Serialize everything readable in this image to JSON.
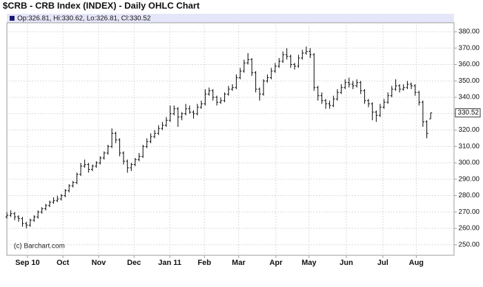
{
  "chart_data": {
    "type": "ohlc",
    "title": "$CRB - CRB Index (INDEX) - Daily OHLC Chart",
    "legend_text": "Op:326.81, Hi:330.62, Lo:326.81, Cl:330.52",
    "watermark": "(c) Barchart.com",
    "color": "#000000",
    "grid": true,
    "xlim": [
      0,
      115
    ],
    "xticks": [
      {
        "value": 5.3,
        "label": "Sep 10"
      },
      {
        "value": 14.4,
        "label": "Oct"
      },
      {
        "value": 23.6,
        "label": "Nov"
      },
      {
        "value": 32.7,
        "label": "Dec"
      },
      {
        "value": 41.9,
        "label": "Jan 11"
      },
      {
        "value": 50.8,
        "label": "Feb"
      },
      {
        "value": 59.6,
        "label": "Mar"
      },
      {
        "value": 69.2,
        "label": "Apr"
      },
      {
        "value": 77.7,
        "label": "May"
      },
      {
        "value": 87.3,
        "label": "Jun"
      },
      {
        "value": 96.7,
        "label": "Jul"
      },
      {
        "value": 105.3,
        "label": "Aug"
      }
    ],
    "ylim": [
      243.6,
      385.5
    ],
    "yticks": [
      {
        "value": 250,
        "label": "250.00"
      },
      {
        "value": 260,
        "label": "260.00"
      },
      {
        "value": 270,
        "label": "270.00"
      },
      {
        "value": 280,
        "label": "280.00"
      },
      {
        "value": 290,
        "label": "290.00"
      },
      {
        "value": 300,
        "label": "300.00"
      },
      {
        "value": 310,
        "label": "310.00"
      },
      {
        "value": 320,
        "label": "320.00"
      },
      {
        "value": 330,
        "label": "330.00"
      },
      {
        "value": 340,
        "label": "340.00"
      },
      {
        "value": 350,
        "label": "350.00"
      },
      {
        "value": 360,
        "label": "360.00"
      },
      {
        "value": 370,
        "label": "370.00"
      },
      {
        "value": 380,
        "label": "380.00"
      }
    ],
    "bars": [
      [
        267,
        270,
        266,
        268
      ],
      [
        268,
        271,
        267,
        269
      ],
      [
        269,
        270,
        265,
        267
      ],
      [
        267,
        268,
        264,
        266
      ],
      [
        266,
        267,
        261,
        263
      ],
      [
        263,
        264,
        260,
        262
      ],
      [
        262,
        266,
        261,
        265
      ],
      [
        265,
        268,
        264,
        267
      ],
      [
        267,
        271,
        266,
        270
      ],
      [
        270,
        273,
        269,
        272
      ],
      [
        272,
        275,
        271,
        274
      ],
      [
        274,
        277,
        273,
        276
      ],
      [
        276,
        279,
        275,
        277
      ],
      [
        277,
        280,
        276,
        278
      ],
      [
        278,
        281,
        277,
        280
      ],
      [
        280,
        284,
        279,
        283
      ],
      [
        283,
        287,
        282,
        286
      ],
      [
        286,
        289,
        285,
        288
      ],
      [
        288,
        294,
        287,
        293
      ],
      [
        293,
        300,
        292,
        298
      ],
      [
        298,
        302,
        297,
        299
      ],
      [
        299,
        300,
        294,
        296
      ],
      [
        296,
        299,
        295,
        298
      ],
      [
        298,
        301,
        297,
        300
      ],
      [
        300,
        304,
        299,
        303
      ],
      [
        303,
        307,
        302,
        306
      ],
      [
        306,
        311,
        305,
        310
      ],
      [
        310,
        321,
        309,
        318
      ],
      [
        318,
        319,
        312,
        314
      ],
      [
        314,
        315,
        304,
        306
      ],
      [
        306,
        307,
        299,
        301
      ],
      [
        301,
        302,
        294,
        297
      ],
      [
        297,
        300,
        295,
        299
      ],
      [
        299,
        303,
        298,
        302
      ],
      [
        302,
        306,
        301,
        304
      ],
      [
        304,
        311,
        303,
        310
      ],
      [
        310,
        315,
        309,
        313
      ],
      [
        313,
        318,
        312,
        316
      ],
      [
        316,
        320,
        315,
        318
      ],
      [
        318,
        323,
        317,
        321
      ],
      [
        321,
        325,
        320,
        323
      ],
      [
        323,
        328,
        322,
        326
      ],
      [
        326,
        335,
        325,
        330
      ],
      [
        330,
        335,
        329,
        333
      ],
      [
        333,
        334,
        322,
        328
      ],
      [
        328,
        331,
        326,
        330
      ],
      [
        330,
        336,
        329,
        333
      ],
      [
        333,
        335,
        330,
        331
      ],
      [
        331,
        332,
        327,
        330
      ],
      [
        330,
        336,
        329,
        334
      ],
      [
        334,
        338,
        333,
        336
      ],
      [
        336,
        345,
        335,
        342
      ],
      [
        342,
        346,
        341,
        344
      ],
      [
        344,
        345,
        338,
        340
      ],
      [
        340,
        341,
        335,
        337
      ],
      [
        337,
        340,
        336,
        338
      ],
      [
        338,
        343,
        337,
        342
      ],
      [
        342,
        347,
        341,
        345
      ],
      [
        345,
        348,
        344,
        346
      ],
      [
        346,
        354,
        345,
        352
      ],
      [
        352,
        358,
        351,
        356
      ],
      [
        356,
        363,
        355,
        361
      ],
      [
        361,
        367,
        360,
        363
      ],
      [
        363,
        364,
        353,
        355
      ],
      [
        355,
        356,
        343,
        345
      ],
      [
        345,
        346,
        338,
        342
      ],
      [
        342,
        351,
        341,
        350
      ],
      [
        350,
        354,
        349,
        352
      ],
      [
        352,
        358,
        351,
        356
      ],
      [
        356,
        361,
        355,
        359
      ],
      [
        359,
        364,
        358,
        362
      ],
      [
        362,
        368,
        361,
        366
      ],
      [
        366,
        370,
        363,
        365
      ],
      [
        365,
        366,
        358,
        360
      ],
      [
        360,
        361,
        357,
        359
      ],
      [
        359,
        366,
        358,
        364
      ],
      [
        364,
        369,
        363,
        367
      ],
      [
        367,
        371,
        366,
        368
      ],
      [
        368,
        370,
        364,
        366
      ],
      [
        366,
        367,
        344,
        346
      ],
      [
        346,
        347,
        338,
        341
      ],
      [
        341,
        343,
        336,
        338
      ],
      [
        338,
        339,
        333,
        336
      ],
      [
        336,
        338,
        333,
        335
      ],
      [
        335,
        341,
        334,
        339
      ],
      [
        339,
        345,
        338,
        343
      ],
      [
        343,
        348,
        342,
        346
      ],
      [
        346,
        351,
        345,
        349
      ],
      [
        349,
        352,
        346,
        348
      ],
      [
        348,
        350,
        345,
        347
      ],
      [
        347,
        351,
        346,
        349
      ],
      [
        349,
        350,
        342,
        344
      ],
      [
        344,
        345,
        336,
        338
      ],
      [
        338,
        339,
        334,
        336
      ],
      [
        336,
        337,
        326,
        331
      ],
      [
        331,
        332,
        325,
        329
      ],
      [
        329,
        336,
        328,
        334
      ],
      [
        334,
        339,
        333,
        337
      ],
      [
        337,
        343,
        336,
        341
      ],
      [
        341,
        347,
        340,
        345
      ],
      [
        345,
        351,
        344,
        347
      ],
      [
        347,
        348,
        343,
        345
      ],
      [
        345,
        348,
        344,
        346
      ],
      [
        346,
        350,
        345,
        348
      ],
      [
        348,
        349,
        345,
        347
      ],
      [
        347,
        348,
        341,
        343
      ],
      [
        343,
        344,
        335,
        337
      ],
      [
        337,
        338,
        322,
        325
      ],
      [
        325,
        326,
        315,
        318
      ],
      [
        326.81,
        330.62,
        326.81,
        330.52
      ]
    ]
  }
}
